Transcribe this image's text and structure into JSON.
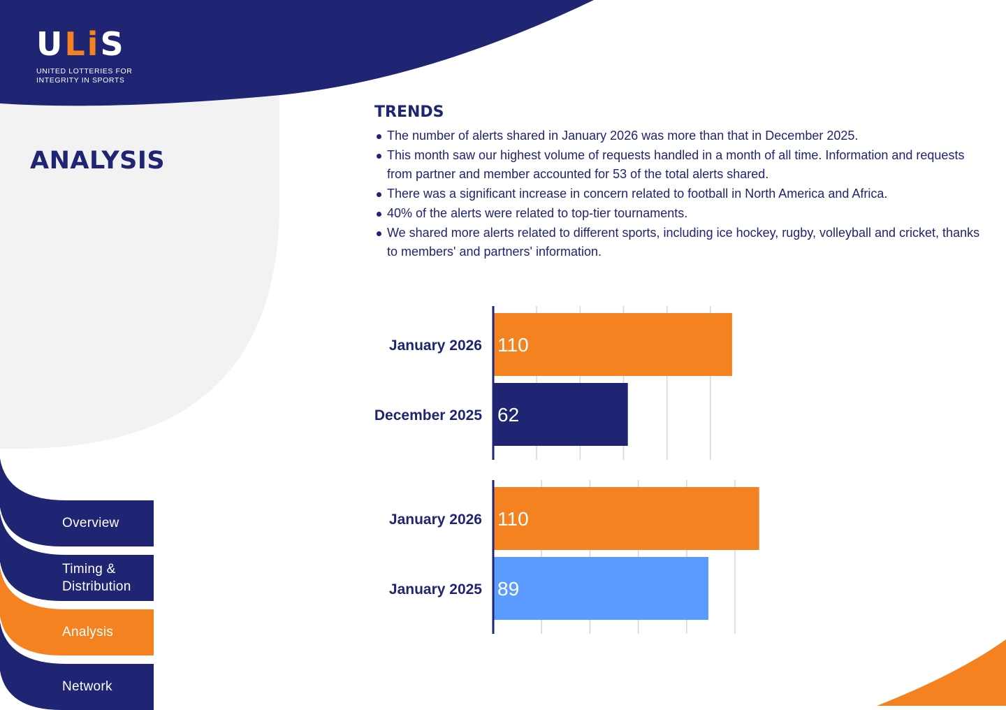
{
  "brand": {
    "logo_text_1": "U",
    "logo_text_accent": "Li",
    "logo_text_2": "S",
    "subtitle_line1": "UNITED LOTTERIES FOR",
    "subtitle_line2": "INTEGRITY IN SPORTS",
    "colors": {
      "navy": "#1f2473",
      "orange": "#f58220",
      "light_blue": "#5b9bff",
      "light_gray": "#f2f2f2"
    }
  },
  "page": {
    "heading": "ANALYSIS"
  },
  "trends": {
    "title": "TRENDS",
    "bullets": [
      "The number of alerts shared in January 2026 was more than that in December 2025.",
      "This month saw our highest volume of requests handled in a month of all time. Information and requests from partner and member accounted for 53 of the total alerts shared.",
      "There was a significant increase in concern related to football in North America and Africa.",
      "40% of the alerts were related to top-tier tournaments.",
      "We shared more alerts related to different sports, including ice hockey, rugby, volleyball and cricket, thanks to members' and partners' information."
    ]
  },
  "nav": {
    "items": [
      {
        "label": "Overview",
        "active": false
      },
      {
        "label": "Timing & Distribution",
        "label_line1": "Timing &",
        "label_line2": "Distribution",
        "active": false
      },
      {
        "label": "Analysis",
        "active": true
      },
      {
        "label": "Network",
        "active": false
      }
    ]
  },
  "chart_data": [
    {
      "type": "bar",
      "orientation": "horizontal",
      "categories": [
        "January 2026",
        "December 2025"
      ],
      "values": [
        110,
        62
      ],
      "colors": [
        "#f58220",
        "#1f2473"
      ],
      "xlim": [
        0,
        120
      ],
      "gridlines": [
        20,
        40,
        60,
        80,
        100
      ]
    },
    {
      "type": "bar",
      "orientation": "horizontal",
      "categories": [
        "January 2026",
        "January 2025"
      ],
      "values": [
        110,
        89
      ],
      "colors": [
        "#f58220",
        "#5b9bff"
      ],
      "xlim": [
        0,
        115
      ],
      "gridlines": [
        20,
        40,
        60,
        80,
        100
      ]
    }
  ]
}
